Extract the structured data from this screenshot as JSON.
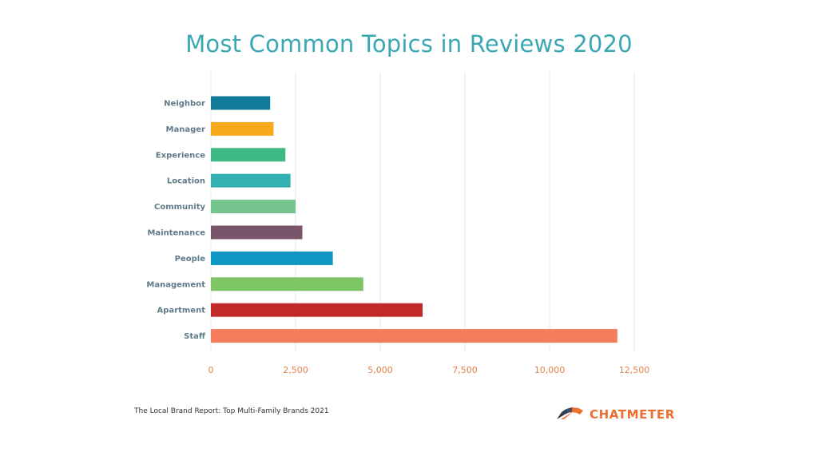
{
  "chart_data": {
    "type": "bar",
    "orientation": "horizontal",
    "title": "Most Common Topics in Reviews 2020",
    "xlabel": "",
    "ylabel": "",
    "xlim": [
      0,
      12500
    ],
    "xticks": [
      0,
      2500,
      5000,
      7500,
      10000,
      12500
    ],
    "xtick_labels": [
      "0",
      "2,500",
      "5,000",
      "7,500",
      "10,000",
      "12,500"
    ],
    "grid": "vertical",
    "categories": [
      "Neighbor",
      "Manager",
      "Experience",
      "Location",
      "Community",
      "Maintenance",
      "People",
      "Management",
      "Apartment",
      "Staff"
    ],
    "values": [
      1750,
      1850,
      2200,
      2350,
      2500,
      2700,
      3600,
      4500,
      6250,
      12000
    ],
    "colors": [
      "#117a99",
      "#f7a81b",
      "#3fb986",
      "#34b0b3",
      "#76c48e",
      "#7a5468",
      "#0f96c3",
      "#7ec665",
      "#c12a2a",
      "#f47c5d"
    ]
  },
  "footer": {
    "source": "The Local Brand Report: Top Multi-Family Brands 2021",
    "brand_name": "CHATMETER"
  },
  "icons": {
    "brand_logo": "chatmeter-gauge-icon"
  }
}
